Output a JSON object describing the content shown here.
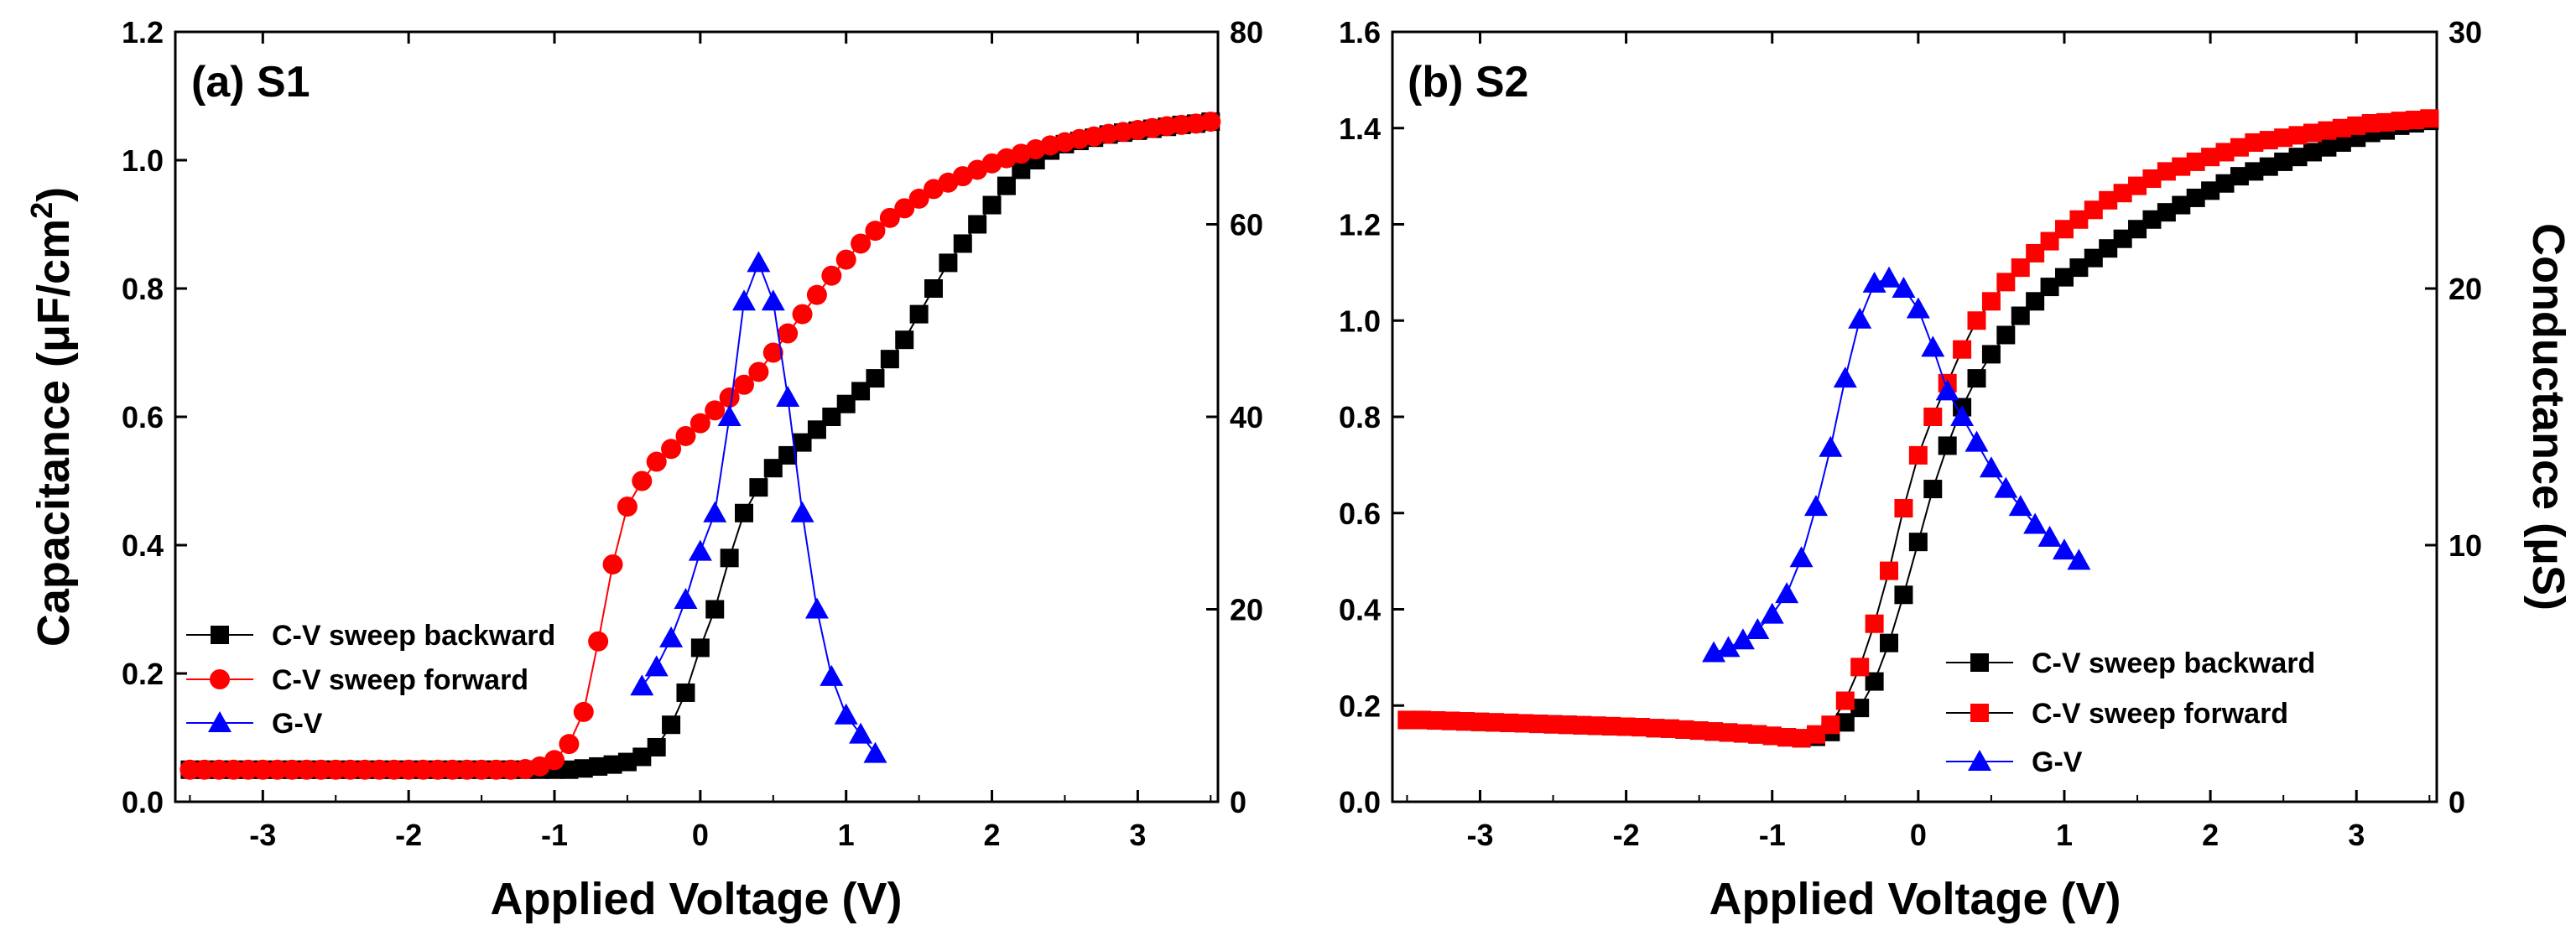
{
  "chart_data": [
    {
      "id": "p0",
      "type": "scatter",
      "title": "(a) S1",
      "xlabel": "Applied Voltage (V)",
      "ylabel_parts": [
        "Capacitance (",
        "μ",
        "F/cm",
        "2",
        ")"
      ],
      "y2label": "",
      "xlim": [
        -3.6,
        3.55
      ],
      "xticks": [
        -3,
        -2,
        -1,
        0,
        1,
        2,
        3
      ],
      "ylim": [
        0,
        1.2
      ],
      "yticks": [
        0.0,
        0.2,
        0.4,
        0.6,
        0.8,
        1.0,
        1.2
      ],
      "y2lim": [
        0,
        80
      ],
      "y2ticks": [
        0,
        20,
        40,
        60,
        80
      ],
      "legend_position": "lower-left",
      "series": [
        {
          "name": "C-V sweep backward",
          "color": "#000000",
          "marker": "square",
          "axis": "left",
          "x": [
            -3.5,
            -3.4,
            -3.3,
            -3.2,
            -3.1,
            -3.0,
            -2.9,
            -2.8,
            -2.7,
            -2.6,
            -2.5,
            -2.4,
            -2.3,
            -2.2,
            -2.1,
            -2.0,
            -1.9,
            -1.8,
            -1.7,
            -1.6,
            -1.5,
            -1.4,
            -1.3,
            -1.2,
            -1.1,
            -1.0,
            -0.9,
            -0.8,
            -0.7,
            -0.6,
            -0.5,
            -0.4,
            -0.3,
            -0.2,
            -0.1,
            0.0,
            0.1,
            0.2,
            0.3,
            0.4,
            0.5,
            0.6,
            0.7,
            0.8,
            0.9,
            1.0,
            1.1,
            1.2,
            1.3,
            1.4,
            1.5,
            1.6,
            1.7,
            1.8,
            1.9,
            2.0,
            2.1,
            2.2,
            2.3,
            2.4,
            2.5,
            2.6,
            2.7,
            2.8,
            2.9,
            3.0,
            3.1,
            3.2,
            3.3,
            3.4,
            3.5
          ],
          "y": [
            0.05,
            0.05,
            0.05,
            0.05,
            0.05,
            0.05,
            0.05,
            0.05,
            0.05,
            0.05,
            0.05,
            0.05,
            0.05,
            0.05,
            0.05,
            0.05,
            0.05,
            0.05,
            0.05,
            0.05,
            0.05,
            0.05,
            0.05,
            0.05,
            0.05,
            0.05,
            0.05,
            0.052,
            0.055,
            0.058,
            0.062,
            0.07,
            0.085,
            0.12,
            0.17,
            0.24,
            0.3,
            0.38,
            0.45,
            0.49,
            0.52,
            0.54,
            0.56,
            0.58,
            0.6,
            0.62,
            0.64,
            0.66,
            0.69,
            0.72,
            0.76,
            0.8,
            0.84,
            0.87,
            0.9,
            0.93,
            0.96,
            0.985,
            1.0,
            1.015,
            1.025,
            1.03,
            1.035,
            1.04,
            1.043,
            1.046,
            1.049,
            1.052,
            1.055,
            1.057,
            1.06
          ]
        },
        {
          "name": "C-V sweep forward",
          "color": "#ff0000",
          "marker": "circle",
          "axis": "left",
          "x": [
            -3.5,
            -3.4,
            -3.3,
            -3.2,
            -3.1,
            -3.0,
            -2.9,
            -2.8,
            -2.7,
            -2.6,
            -2.5,
            -2.4,
            -2.3,
            -2.2,
            -2.1,
            -2.0,
            -1.9,
            -1.8,
            -1.7,
            -1.6,
            -1.5,
            -1.4,
            -1.3,
            -1.2,
            -1.1,
            -1.0,
            -0.9,
            -0.8,
            -0.7,
            -0.6,
            -0.5,
            -0.4,
            -0.3,
            -0.2,
            -0.1,
            0.0,
            0.1,
            0.2,
            0.3,
            0.4,
            0.5,
            0.6,
            0.7,
            0.8,
            0.9,
            1.0,
            1.1,
            1.2,
            1.3,
            1.4,
            1.5,
            1.6,
            1.7,
            1.8,
            1.9,
            2.0,
            2.1,
            2.2,
            2.3,
            2.4,
            2.5,
            2.6,
            2.7,
            2.8,
            2.9,
            3.0,
            3.1,
            3.2,
            3.3,
            3.4,
            3.5
          ],
          "y": [
            0.05,
            0.05,
            0.05,
            0.05,
            0.05,
            0.05,
            0.05,
            0.05,
            0.05,
            0.05,
            0.05,
            0.05,
            0.05,
            0.05,
            0.05,
            0.05,
            0.05,
            0.05,
            0.05,
            0.05,
            0.05,
            0.05,
            0.05,
            0.051,
            0.055,
            0.065,
            0.09,
            0.14,
            0.25,
            0.37,
            0.46,
            0.5,
            0.53,
            0.55,
            0.57,
            0.59,
            0.61,
            0.63,
            0.65,
            0.67,
            0.7,
            0.73,
            0.76,
            0.79,
            0.82,
            0.845,
            0.87,
            0.89,
            0.91,
            0.925,
            0.94,
            0.955,
            0.965,
            0.975,
            0.985,
            0.995,
            1.003,
            1.01,
            1.017,
            1.023,
            1.028,
            1.033,
            1.037,
            1.041,
            1.044,
            1.047,
            1.05,
            1.053,
            1.055,
            1.057,
            1.06
          ]
        },
        {
          "name": "G-V",
          "color": "#0000ff",
          "marker": "triangle",
          "axis": "right",
          "x": [
            -0.4,
            -0.3,
            -0.2,
            -0.1,
            0.0,
            0.1,
            0.2,
            0.3,
            0.4,
            0.5,
            0.6,
            0.7,
            0.8,
            0.9,
            1.0,
            1.1,
            1.2
          ],
          "y": [
            12,
            14,
            17,
            21,
            26,
            30,
            40,
            52,
            56,
            52,
            42,
            30,
            20,
            13,
            9,
            7,
            5
          ]
        }
      ]
    },
    {
      "id": "p1",
      "type": "scatter",
      "title": "(b) S2",
      "xlabel": "Applied Voltage (V)",
      "ylabel_parts": [],
      "y2label": "Conductance (μS)",
      "xlim": [
        -3.6,
        3.55
      ],
      "xticks": [
        -3,
        -2,
        -1,
        0,
        1,
        2,
        3
      ],
      "ylim": [
        0,
        1.6
      ],
      "yticks": [
        0.0,
        0.2,
        0.4,
        0.6,
        0.8,
        1.0,
        1.2,
        1.4,
        1.6
      ],
      "y2lim": [
        0,
        30
      ],
      "y2ticks": [
        0,
        10,
        20,
        30
      ],
      "legend_position": "lower-right",
      "series": [
        {
          "name": "C-V sweep backward",
          "color": "#000000",
          "marker": "square",
          "axis": "left",
          "x": [
            -3.5,
            -3.4,
            -3.3,
            -3.2,
            -3.1,
            -3.0,
            -2.9,
            -2.8,
            -2.7,
            -2.6,
            -2.5,
            -2.4,
            -2.3,
            -2.2,
            -2.1,
            -2.0,
            -1.9,
            -1.8,
            -1.7,
            -1.6,
            -1.5,
            -1.4,
            -1.3,
            -1.2,
            -1.1,
            -1.0,
            -0.9,
            -0.8,
            -0.7,
            -0.6,
            -0.5,
            -0.4,
            -0.3,
            -0.2,
            -0.1,
            0.0,
            0.1,
            0.2,
            0.3,
            0.4,
            0.5,
            0.6,
            0.7,
            0.8,
            0.9,
            1.0,
            1.1,
            1.2,
            1.3,
            1.4,
            1.5,
            1.6,
            1.7,
            1.8,
            1.9,
            2.0,
            2.1,
            2.2,
            2.3,
            2.4,
            2.5,
            2.6,
            2.7,
            2.8,
            2.9,
            3.0,
            3.1,
            3.2,
            3.3,
            3.4,
            3.5
          ],
          "y": [
            0.17,
            0.17,
            0.169,
            0.168,
            0.167,
            0.166,
            0.165,
            0.164,
            0.163,
            0.162,
            0.161,
            0.16,
            0.159,
            0.158,
            0.157,
            0.156,
            0.155,
            0.153,
            0.152,
            0.15,
            0.148,
            0.146,
            0.144,
            0.142,
            0.14,
            0.137,
            0.134,
            0.132,
            0.135,
            0.145,
            0.165,
            0.195,
            0.25,
            0.33,
            0.43,
            0.54,
            0.65,
            0.74,
            0.82,
            0.88,
            0.93,
            0.97,
            1.01,
            1.04,
            1.07,
            1.09,
            1.11,
            1.13,
            1.15,
            1.17,
            1.19,
            1.21,
            1.225,
            1.24,
            1.255,
            1.27,
            1.285,
            1.3,
            1.31,
            1.32,
            1.33,
            1.34,
            1.35,
            1.36,
            1.37,
            1.38,
            1.39,
            1.395,
            1.405,
            1.41,
            1.415
          ]
        },
        {
          "name": "C-V sweep forward",
          "color": "#ff0000",
          "marker": "square",
          "axis": "left",
          "x": [
            -3.5,
            -3.4,
            -3.3,
            -3.2,
            -3.1,
            -3.0,
            -2.9,
            -2.8,
            -2.7,
            -2.6,
            -2.5,
            -2.4,
            -2.3,
            -2.2,
            -2.1,
            -2.0,
            -1.9,
            -1.8,
            -1.7,
            -1.6,
            -1.5,
            -1.4,
            -1.3,
            -1.2,
            -1.1,
            -1.0,
            -0.9,
            -0.8,
            -0.7,
            -0.6,
            -0.5,
            -0.4,
            -0.3,
            -0.2,
            -0.1,
            0.0,
            0.1,
            0.2,
            0.3,
            0.4,
            0.5,
            0.6,
            0.7,
            0.8,
            0.9,
            1.0,
            1.1,
            1.2,
            1.3,
            1.4,
            1.5,
            1.6,
            1.7,
            1.8,
            1.9,
            2.0,
            2.1,
            2.2,
            2.3,
            2.4,
            2.5,
            2.6,
            2.7,
            2.8,
            2.9,
            3.0,
            3.1,
            3.2,
            3.3,
            3.4,
            3.5
          ],
          "y": [
            0.17,
            0.17,
            0.169,
            0.168,
            0.167,
            0.166,
            0.165,
            0.164,
            0.163,
            0.162,
            0.161,
            0.16,
            0.159,
            0.158,
            0.157,
            0.156,
            0.155,
            0.153,
            0.152,
            0.15,
            0.148,
            0.146,
            0.144,
            0.142,
            0.14,
            0.137,
            0.134,
            0.132,
            0.14,
            0.16,
            0.21,
            0.28,
            0.37,
            0.48,
            0.61,
            0.72,
            0.8,
            0.87,
            0.94,
            1.0,
            1.04,
            1.08,
            1.11,
            1.14,
            1.165,
            1.19,
            1.21,
            1.23,
            1.25,
            1.265,
            1.28,
            1.295,
            1.31,
            1.32,
            1.33,
            1.34,
            1.35,
            1.36,
            1.37,
            1.375,
            1.38,
            1.385,
            1.39,
            1.395,
            1.4,
            1.405,
            1.41,
            1.412,
            1.415,
            1.417,
            1.42
          ]
        },
        {
          "name": "G-V",
          "color": "#0000ff",
          "marker": "triangle",
          "axis": "right",
          "x": [
            -1.4,
            -1.3,
            -1.2,
            -1.1,
            -1.0,
            -0.9,
            -0.8,
            -0.7,
            -0.6,
            -0.5,
            -0.4,
            -0.3,
            -0.2,
            -0.1,
            0.0,
            0.1,
            0.2,
            0.3,
            0.4,
            0.5,
            0.6,
            0.7,
            0.8,
            0.9,
            1.0,
            1.1
          ],
          "y": [
            5.8,
            6.0,
            6.3,
            6.7,
            7.3,
            8.1,
            9.5,
            11.5,
            13.8,
            16.5,
            18.8,
            20.2,
            20.4,
            20.0,
            19.2,
            17.7,
            16.0,
            15.0,
            14.0,
            13.0,
            12.2,
            11.5,
            10.8,
            10.3,
            9.8,
            9.4
          ]
        }
      ]
    }
  ]
}
